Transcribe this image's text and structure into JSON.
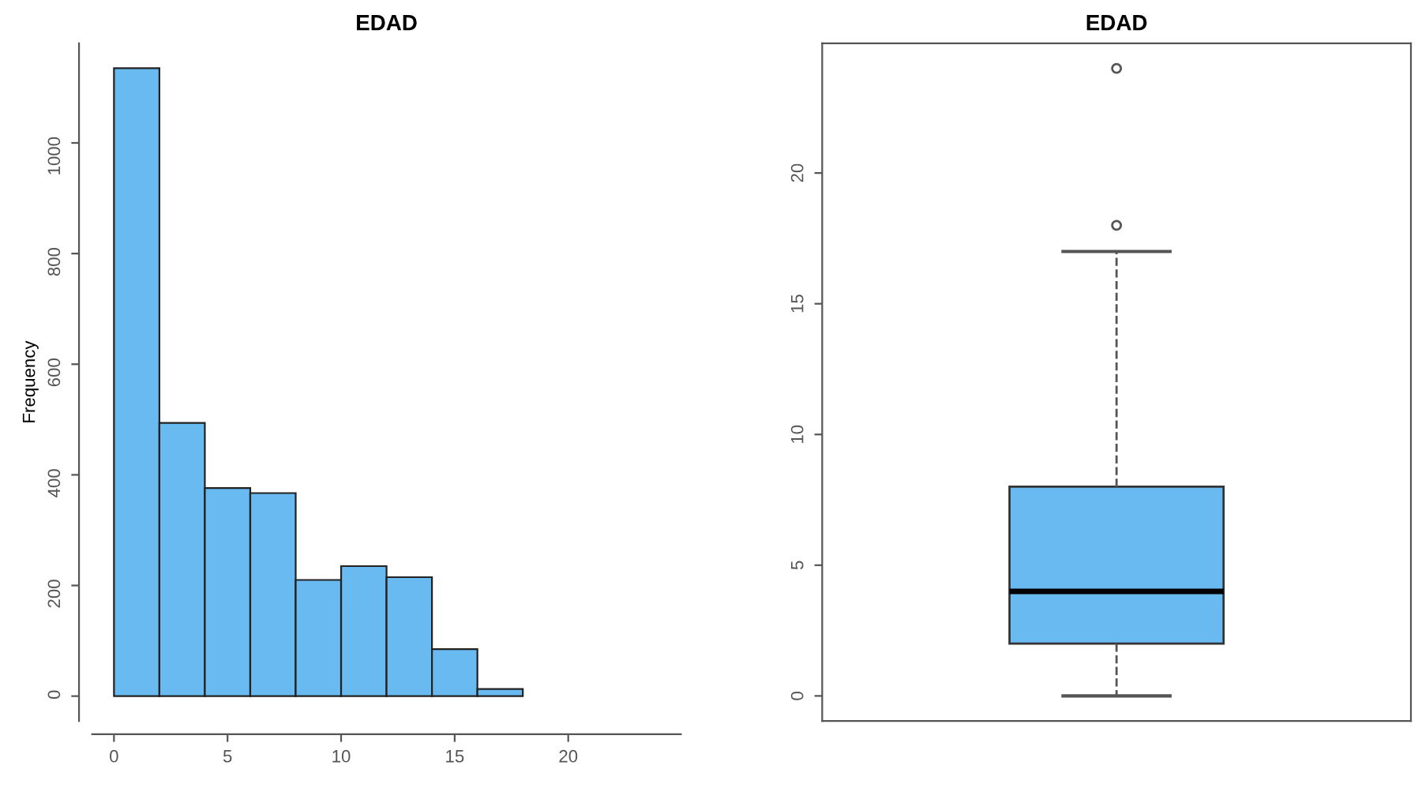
{
  "chart_data": [
    {
      "type": "histogram",
      "title": "EDAD",
      "ylabel": "Frequency",
      "bins": [
        0,
        2,
        4,
        6,
        8,
        10,
        12,
        14,
        16,
        18
      ],
      "values": [
        1135,
        494,
        376,
        367,
        210,
        235,
        215,
        85,
        13
      ],
      "color": "#69baf0",
      "xlim": [
        -0.96,
        24.96
      ],
      "xticks": [
        0,
        5,
        10,
        15,
        20
      ],
      "ylim": [
        -45,
        1180
      ],
      "yticks": [
        0,
        200,
        400,
        600,
        800,
        1000
      ],
      "grid": false
    },
    {
      "type": "box",
      "title": "EDAD",
      "categories": [
        null
      ],
      "boxes": [
        {
          "low": 0,
          "q1": 2,
          "median": 4,
          "q3": 8,
          "high": 17,
          "outliers": [
            18,
            24
          ]
        }
      ],
      "color": "#69baf0",
      "ylim": [
        -0.96,
        24.96
      ],
      "yticks": [
        0,
        5,
        10,
        15,
        20
      ],
      "grid": false
    }
  ]
}
